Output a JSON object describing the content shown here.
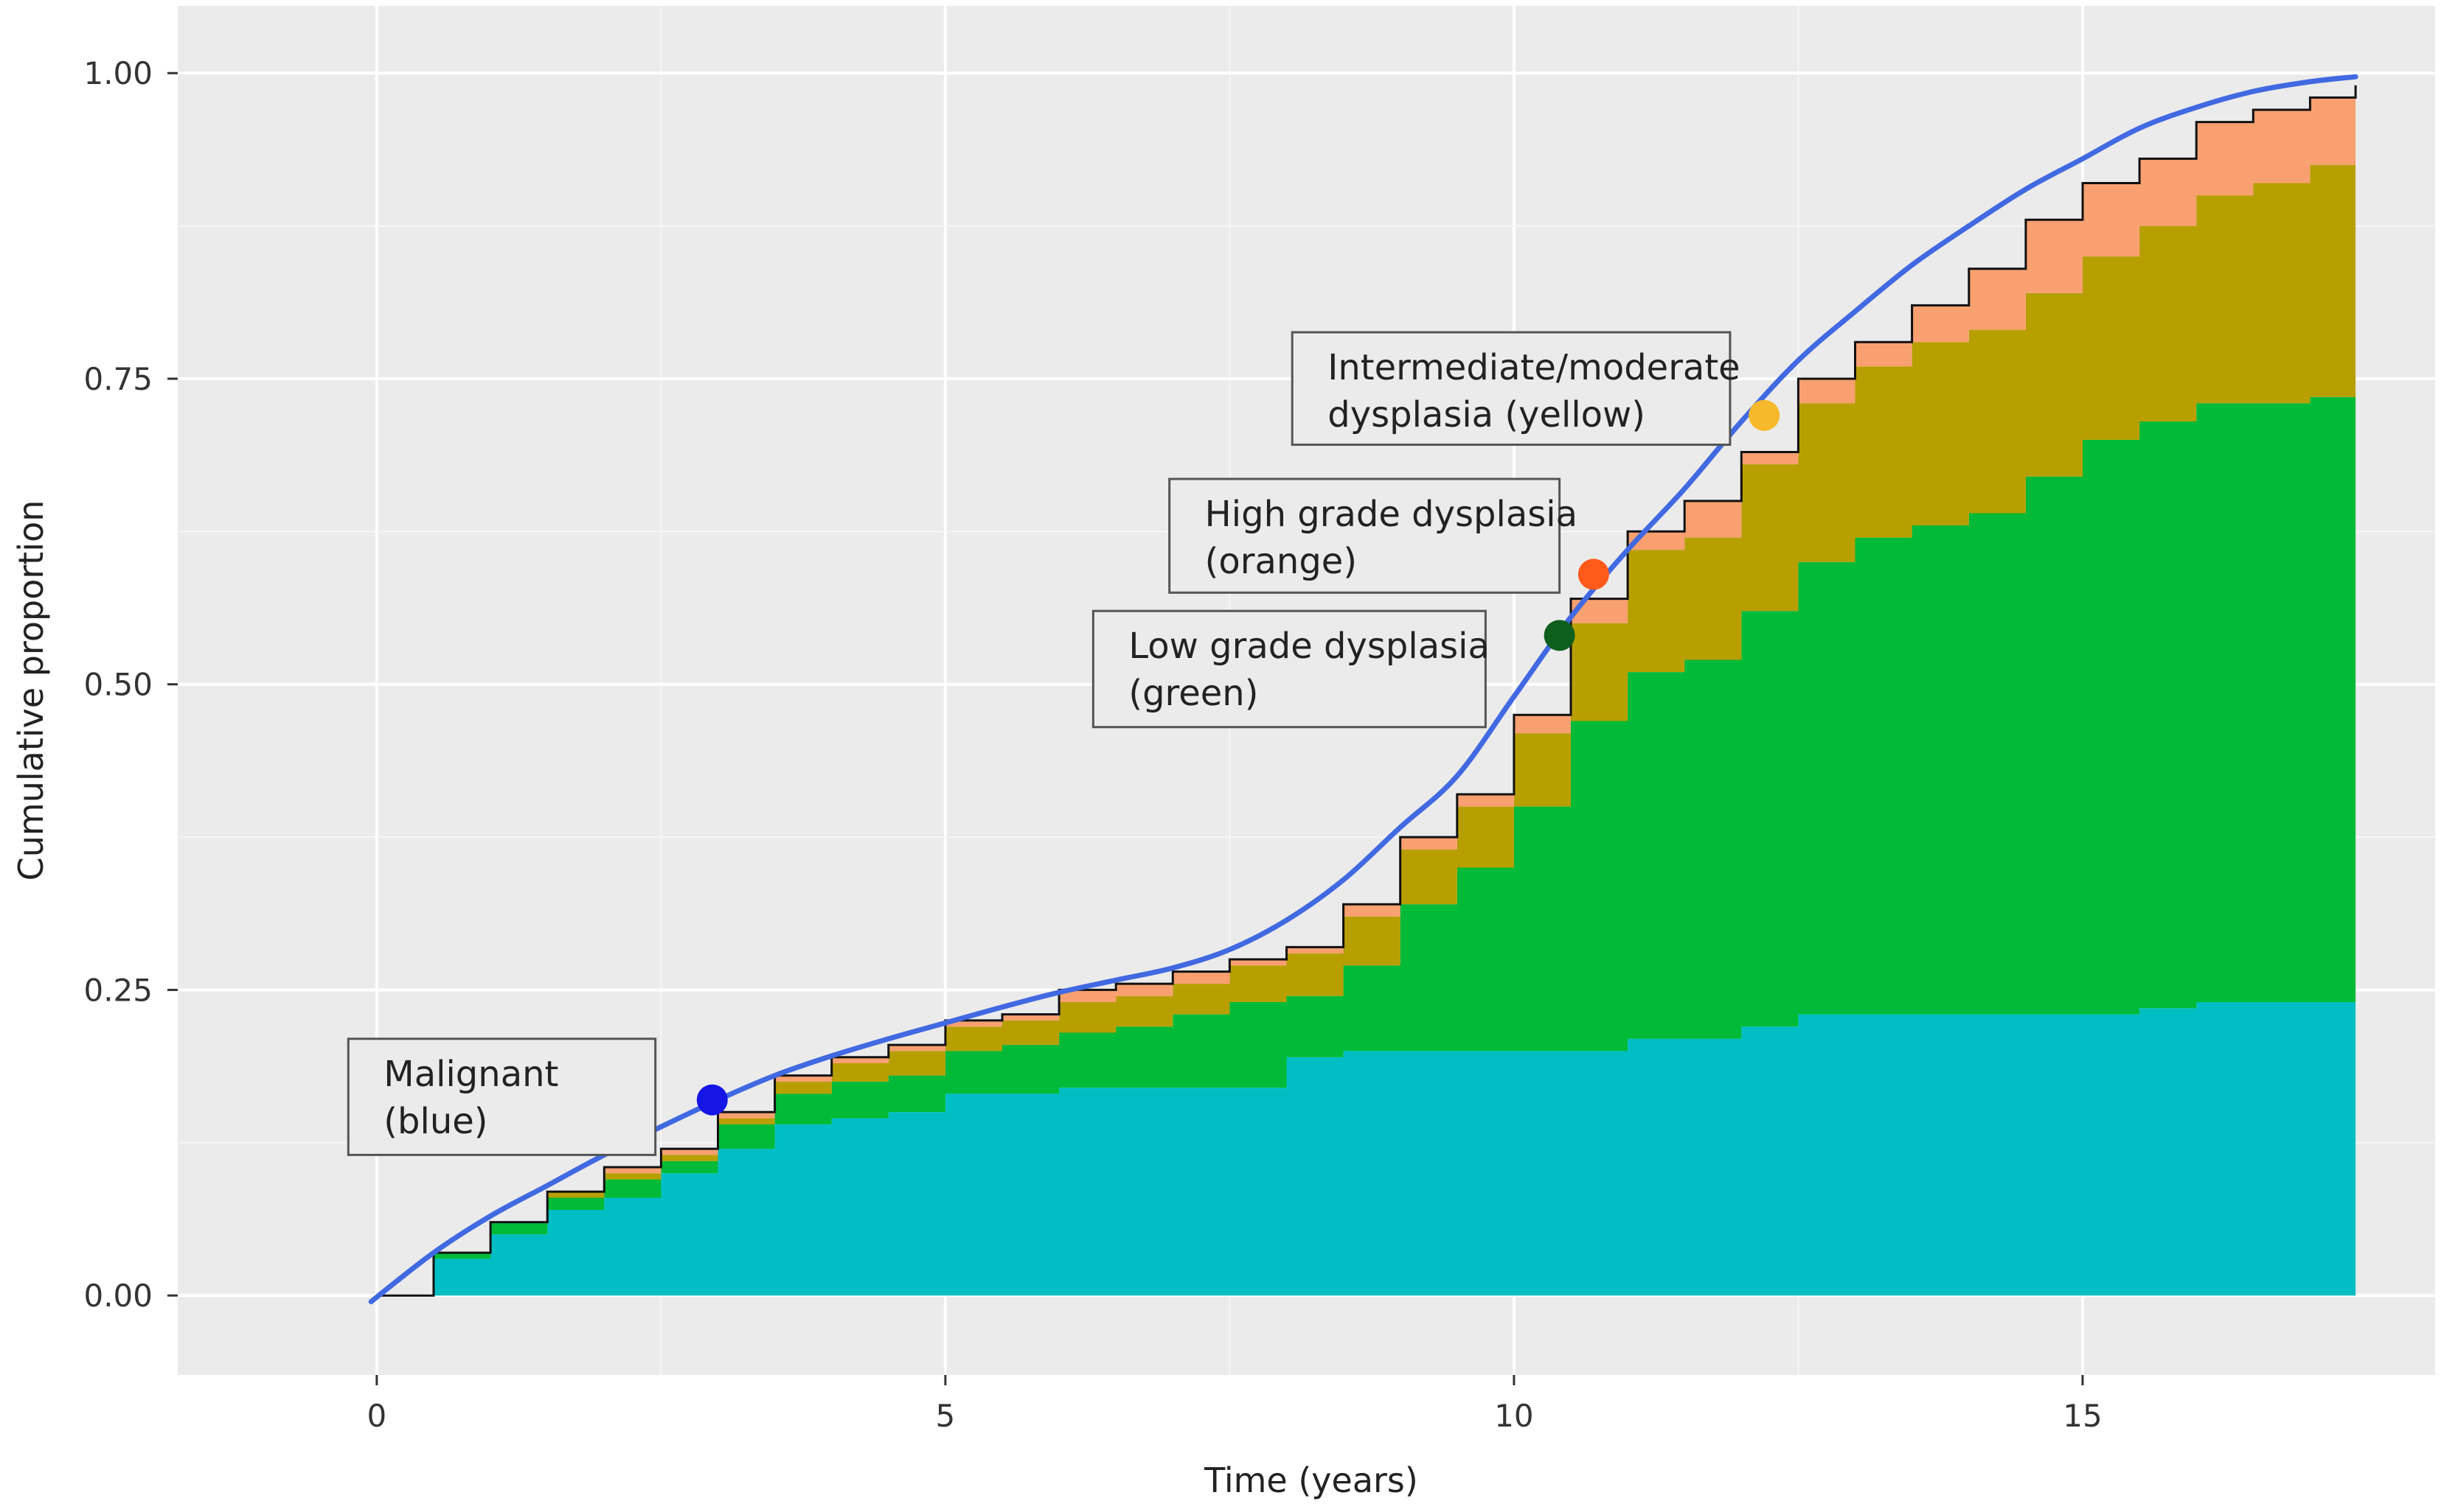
{
  "chart_data": {
    "type": "area",
    "title": "",
    "xlabel": "Time (years)",
    "ylabel": "Cumulative proportion",
    "xlim": [
      -1.75,
      18.1
    ],
    "ylim": [
      -0.065,
      1.055
    ],
    "x_ticks": [
      0,
      5,
      10,
      15
    ],
    "y_ticks": [
      0.0,
      0.25,
      0.5,
      0.75,
      1.0
    ],
    "x_tick_labels": [
      "0",
      "5",
      "10",
      "15"
    ],
    "y_tick_labels": [
      "0.00",
      "0.25",
      "0.50",
      "0.75",
      "1.00"
    ],
    "grid": true,
    "stacked": true,
    "x": [
      0,
      0.5,
      1,
      1.5,
      2,
      2.5,
      3,
      3.5,
      4,
      4.5,
      5,
      5.5,
      6,
      6.5,
      7,
      7.5,
      8,
      8.5,
      9,
      9.5,
      10,
      10.5,
      11,
      11.5,
      12,
      12.5,
      13,
      13.5,
      14,
      14.5,
      15,
      15.5,
      16,
      16.5,
      17,
      17.4
    ],
    "series": [
      {
        "name": "Malignant",
        "color": "#00BEC4",
        "values": [
          0,
          0.03,
          0.05,
          0.07,
          0.08,
          0.1,
          0.12,
          0.14,
          0.145,
          0.15,
          0.165,
          0.165,
          0.17,
          0.17,
          0.17,
          0.17,
          0.195,
          0.2,
          0.2,
          0.2,
          0.2,
          0.2,
          0.21,
          0.21,
          0.22,
          0.23,
          0.23,
          0.23,
          0.23,
          0.23,
          0.23,
          0.235,
          0.24,
          0.24,
          0.24,
          0.24
        ]
      },
      {
        "name": "Low grade dysplasia",
        "color": "#00BA38",
        "values": [
          0,
          0.005,
          0.01,
          0.01,
          0.015,
          0.01,
          0.02,
          0.025,
          0.03,
          0.03,
          0.035,
          0.04,
          0.045,
          0.05,
          0.06,
          0.07,
          0.05,
          0.07,
          0.12,
          0.15,
          0.2,
          0.27,
          0.3,
          0.31,
          0.34,
          0.37,
          0.39,
          0.4,
          0.41,
          0.44,
          0.47,
          0.48,
          0.49,
          0.49,
          0.495,
          0.5
        ]
      },
      {
        "name": "Intermediate/moderate dysplasia",
        "color": "#B79F00",
        "values": [
          0,
          0,
          0,
          0.005,
          0.005,
          0.005,
          0.005,
          0.01,
          0.015,
          0.02,
          0.02,
          0.02,
          0.025,
          0.025,
          0.025,
          0.03,
          0.035,
          0.04,
          0.045,
          0.05,
          0.06,
          0.08,
          0.1,
          0.1,
          0.12,
          0.13,
          0.14,
          0.15,
          0.15,
          0.15,
          0.15,
          0.16,
          0.17,
          0.18,
          0.19,
          0.195
        ]
      },
      {
        "name": "High grade dysplasia",
        "color": "#F8A070",
        "values": [
          0,
          0,
          0,
          0,
          0.005,
          0.005,
          0.005,
          0.005,
          0.005,
          0.005,
          0.005,
          0.005,
          0.01,
          0.01,
          0.01,
          0.005,
          0.005,
          0.01,
          0.01,
          0.01,
          0.015,
          0.02,
          0.015,
          0.03,
          0.01,
          0.02,
          0.02,
          0.03,
          0.05,
          0.06,
          0.06,
          0.055,
          0.06,
          0.06,
          0.055,
          0.055
        ]
      }
    ],
    "trend_line": {
      "color": "#4169E1",
      "x": [
        -0.05,
        0.5,
        1,
        1.5,
        2,
        2.5,
        3,
        3.5,
        4,
        4.5,
        5,
        5.5,
        6,
        6.5,
        7,
        7.5,
        8,
        8.5,
        9,
        9.5,
        10,
        10.5,
        11,
        11.5,
        12,
        12.5,
        13,
        13.5,
        14,
        14.5,
        15,
        15.5,
        16,
        16.5,
        17,
        17.4
      ],
      "y": [
        -0.005,
        0.035,
        0.065,
        0.09,
        0.115,
        0.138,
        0.16,
        0.18,
        0.196,
        0.21,
        0.223,
        0.236,
        0.248,
        0.258,
        0.268,
        0.283,
        0.307,
        0.34,
        0.383,
        0.425,
        0.49,
        0.555,
        0.61,
        0.66,
        0.715,
        0.765,
        0.805,
        0.843,
        0.875,
        0.905,
        0.93,
        0.955,
        0.972,
        0.985,
        0.993,
        0.997
      ]
    },
    "annotations": [
      {
        "key": "malignant",
        "line1": "Malignant",
        "line2": "(blue)",
        "point": {
          "x": 2.95,
          "y": 0.16
        },
        "color": "#1515E6",
        "box_x": [
          -0.25,
          2.45
        ],
        "box_y": [
          0.115,
          0.21
        ]
      },
      {
        "key": "low_grade",
        "line1": "Low grade dysplasia",
        "line2": "(green)",
        "point": {
          "x": 10.4,
          "y": 0.54
        },
        "color": "#0E5E1C",
        "box_x": [
          6.3,
          9.75
        ],
        "box_y": [
          0.465,
          0.56
        ]
      },
      {
        "key": "high_grade",
        "line1": "High grade dysplasia",
        "line2": "(orange)",
        "point": {
          "x": 10.7,
          "y": 0.59
        },
        "color": "#FF5A1A",
        "box_x": [
          6.97,
          10.4
        ],
        "box_y": [
          0.575,
          0.668
        ]
      },
      {
        "key": "intermediate",
        "line1": "Intermediate/moderate",
        "line2": "dysplasia (yellow)",
        "point": {
          "x": 12.2,
          "y": 0.72
        },
        "color": "#F6B92B",
        "box_x": [
          8.05,
          11.9
        ],
        "box_y": [
          0.696,
          0.788
        ]
      }
    ]
  }
}
